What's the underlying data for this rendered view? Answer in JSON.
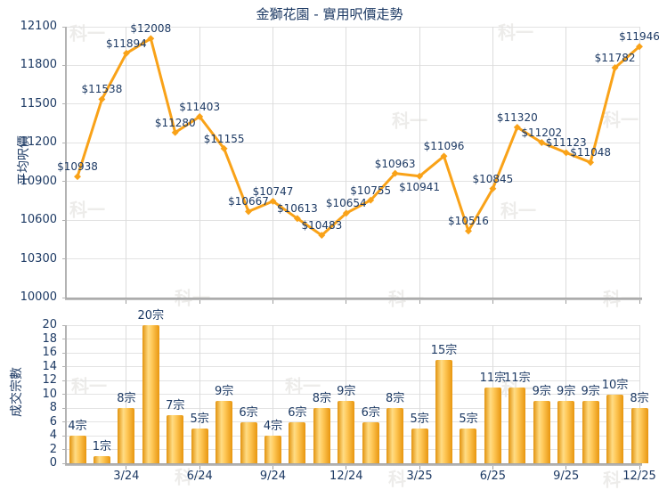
{
  "title": "金獅花園 - 實用呎價走勢",
  "watermark_text": "科一",
  "colors": {
    "line": "#F9A218",
    "bar_edge": "#E2930E",
    "bar_center": "#FFDC85",
    "label_text": "#1D3A64",
    "grid": "#E3E3E3",
    "axis": "#B3B3B3",
    "watermark": "#EDECEA"
  },
  "chart_data": [
    {
      "type": "line",
      "title": "金獅花園 - 實用呎價走勢",
      "ylabel": "平均呎價",
      "ylim": [
        10000,
        12100
      ],
      "yticks": [
        10000,
        10300,
        10600,
        10900,
        11200,
        11500,
        11800,
        12100
      ],
      "grid": "both",
      "x_month_count": 24,
      "xtick_positions": [
        3,
        6,
        9,
        12,
        15,
        18,
        21,
        24
      ],
      "xtick_labels": [
        "3/24",
        "6/24",
        "9/24",
        "12/24",
        "3/25",
        "6/25",
        "9/25",
        "12/25"
      ],
      "values": [
        10938,
        11538,
        11894,
        12008,
        11280,
        11403,
        11155,
        10667,
        10747,
        10613,
        10483,
        10654,
        10755,
        10963,
        10941,
        11096,
        10516,
        10845,
        11320,
        11202,
        11123,
        11048,
        11782,
        11946
      ],
      "point_labels": [
        "$10938",
        "$11538",
        "$11894",
        "$12008",
        "$11280",
        "$11403",
        "$11155",
        "$10667",
        "$10747",
        "$10613",
        "$10483",
        "$10654",
        "$10755",
        "$10963",
        "$10941",
        "$11096",
        "$10516",
        "$10845",
        "$11320",
        "$11202",
        "$11123",
        "$11048",
        "$11782",
        "$11946"
      ],
      "label_below_indexes": [
        14
      ]
    },
    {
      "type": "bar",
      "ylabel": "成交宗數",
      "ylim": [
        0,
        20
      ],
      "yticks": [
        0,
        2,
        4,
        6,
        8,
        10,
        12,
        14,
        16,
        18,
        20
      ],
      "grid": "both",
      "x_month_count": 24,
      "xtick_positions": [
        3,
        6,
        9,
        12,
        15,
        18,
        21,
        24
      ],
      "xtick_labels": [
        "3/24",
        "6/24",
        "9/24",
        "12/24",
        "3/25",
        "6/25",
        "9/25",
        "12/25"
      ],
      "values": [
        4,
        1,
        8,
        20,
        7,
        5,
        9,
        6,
        4,
        6,
        8,
        9,
        6,
        8,
        5,
        15,
        5,
        11,
        11,
        9,
        9,
        9,
        10,
        8
      ],
      "bar_labels": [
        "4宗",
        "1宗",
        "8宗",
        "20宗",
        "7宗",
        "5宗",
        "9宗",
        "6宗",
        "4宗",
        "6宗",
        "8宗",
        "9宗",
        "6宗",
        "8宗",
        "5宗",
        "15宗",
        "5宗",
        "11宗",
        "11宗",
        "9宗",
        "9宗",
        "9宗",
        "10宗",
        "8宗"
      ]
    }
  ]
}
